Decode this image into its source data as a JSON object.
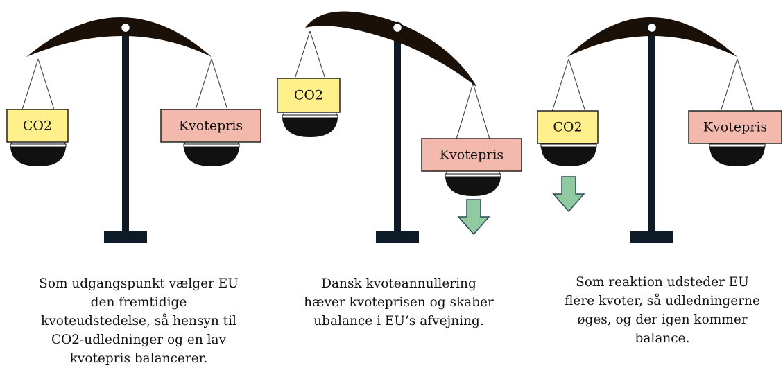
{
  "panels": [
    {
      "left_label": "CO2",
      "right_label": "Kvotepris",
      "caption": [
        "Som udgangspunkt vælger EU",
        "den fremtidige",
        "kvoteudstedelse, så hensyn til",
        "CO2-udledninger og en lav",
        "kvotepris balancerer."
      ]
    },
    {
      "left_label": "CO2",
      "right_label": "Kvotepris",
      "caption": [
        "Dansk kvoteannullering",
        "hæver kvoteprisen og skaber",
        "ubalance i EU’s afvejning."
      ]
    },
    {
      "left_label": "CO2",
      "right_label": "Kvotepris",
      "caption": [
        "Som reaktion udsteder EU",
        "flere kvoter, så udledningerne",
        "øges, og der igen kommer",
        "balance."
      ]
    }
  ]
}
